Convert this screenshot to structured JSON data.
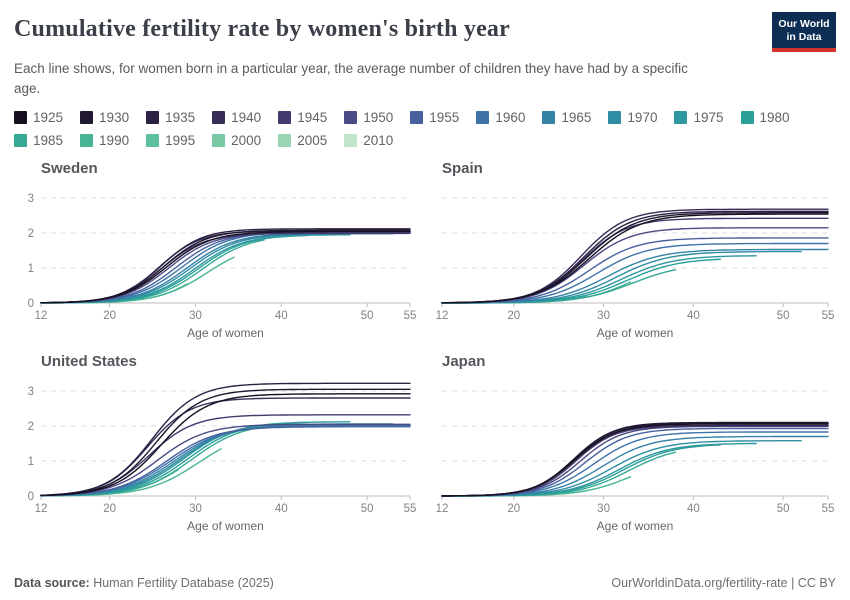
{
  "header": {
    "title": "Cumulative fertility rate by women's birth year",
    "subtitle": "Each line shows, for women born in a particular year, the average number of children they have had by a specific age.",
    "logo": {
      "line1": "Our World",
      "line2": "in Data"
    }
  },
  "colors": {
    "accent_navy": "#0d2e53",
    "accent_red": "#d2332e",
    "gridline": "#dcdcdc",
    "axis": "#bdbdbd",
    "tick_label": "#828282",
    "axis_title": "#666666"
  },
  "legend": {
    "items": [
      {
        "year": 1925,
        "color": "#161021"
      },
      {
        "year": 1930,
        "color": "#211831"
      },
      {
        "year": 1935,
        "color": "#2c2143"
      },
      {
        "year": 1940,
        "color": "#372d57"
      },
      {
        "year": 1945,
        "color": "#423a6c"
      },
      {
        "year": 1950,
        "color": "#4a4a85"
      },
      {
        "year": 1955,
        "color": "#48619e"
      },
      {
        "year": 1960,
        "color": "#3d73a9"
      },
      {
        "year": 1965,
        "color": "#3582a7"
      },
      {
        "year": 1970,
        "color": "#2e8da2"
      },
      {
        "year": 1975,
        "color": "#2e97a0"
      },
      {
        "year": 1980,
        "color": "#2ba099"
      },
      {
        "year": 1985,
        "color": "#35a993"
      },
      {
        "year": 1990,
        "color": "#47b496"
      },
      {
        "year": 1995,
        "color": "#5cbf9d"
      },
      {
        "year": 2000,
        "color": "#79c9a6"
      },
      {
        "year": 2005,
        "color": "#99d5b2"
      },
      {
        "year": 2010,
        "color": "#c0e5cb"
      }
    ]
  },
  "chart_data": [
    {
      "type": "line",
      "title": "Sweden",
      "xlabel": "Age of women",
      "xlim": [
        12,
        55
      ],
      "ylim": [
        0,
        3.45
      ],
      "x_ticks": [
        12,
        20,
        30,
        40,
        50,
        55
      ],
      "y_ticks": [
        0,
        1,
        2,
        3
      ],
      "show_y_labels": true,
      "grid": "dashed horizontal",
      "series_note": "Each series: birth-year cohort. final = cumulative fertility at end_age (line endpoint read from chart); mid/steep = logistic shape of the curve.",
      "series": [
        {
          "year": 1925,
          "final": 2.04,
          "end_age": 55,
          "mid": 26.6,
          "steep": 2.6
        },
        {
          "year": 1930,
          "final": 2.08,
          "end_age": 55,
          "mid": 26.3,
          "steep": 2.5
        },
        {
          "year": 1935,
          "final": 2.12,
          "end_age": 55,
          "mid": 26.0,
          "steep": 2.4
        },
        {
          "year": 1940,
          "final": 2.06,
          "end_age": 55,
          "mid": 25.8,
          "steep": 2.4
        },
        {
          "year": 1945,
          "final": 1.99,
          "end_age": 55,
          "mid": 26.1,
          "steep": 2.5
        },
        {
          "year": 1950,
          "final": 2.0,
          "end_age": 55,
          "mid": 26.9,
          "steep": 2.6
        },
        {
          "year": 1955,
          "final": 2.02,
          "end_age": 55,
          "mid": 27.7,
          "steep": 2.7
        },
        {
          "year": 1960,
          "final": 2.04,
          "end_age": 55,
          "mid": 28.4,
          "steep": 2.8
        },
        {
          "year": 1965,
          "final": 2.0,
          "end_age": 55,
          "mid": 29.0,
          "steep": 2.8
        },
        {
          "year": 1970,
          "final": 1.98,
          "end_age": 53,
          "mid": 29.4,
          "steep": 2.8
        },
        {
          "year": 1975,
          "final": 1.95,
          "end_age": 48,
          "mid": 29.9,
          "steep": 2.8
        },
        {
          "year": 1980,
          "final": 1.93,
          "end_age": 43,
          "mid": 30.3,
          "steep": 2.8
        },
        {
          "year": 1985,
          "final": 1.8,
          "end_age": 38,
          "mid": 30.8,
          "steep": 2.8
        },
        {
          "year": 1990,
          "final": 1.31,
          "end_age": 34.5,
          "mid": 31.4,
          "steep": 2.8
        },
        {
          "year": 1995,
          "final": 0.55,
          "end_age": 29,
          "mid": 32.0,
          "steep": 2.8
        },
        {
          "year": 2000,
          "final": 0.15,
          "end_age": 24,
          "mid": 32.5,
          "steep": 2.8
        },
        {
          "year": 2005,
          "final": 0.02,
          "end_age": 19,
          "mid": 33.0,
          "steep": 2.8
        },
        {
          "year": 2010,
          "final": 0.01,
          "end_age": 14,
          "mid": 33.0,
          "steep": 2.8
        }
      ]
    },
    {
      "type": "line",
      "title": "Spain",
      "xlabel": "Age of women",
      "xlim": [
        12,
        55
      ],
      "ylim": [
        0,
        3.45
      ],
      "x_ticks": [
        12,
        20,
        30,
        40,
        50,
        55
      ],
      "y_ticks": [
        0,
        1,
        2,
        3
      ],
      "show_y_labels": false,
      "grid": "dashed horizontal",
      "series": [
        {
          "year": 1925,
          "final": 2.54,
          "end_age": 55,
          "mid": 28.4,
          "steep": 2.8
        },
        {
          "year": 1930,
          "final": 2.58,
          "end_age": 55,
          "mid": 28.1,
          "steep": 2.7
        },
        {
          "year": 1935,
          "final": 2.62,
          "end_age": 55,
          "mid": 27.8,
          "steep": 2.6
        },
        {
          "year": 1940,
          "final": 2.68,
          "end_age": 55,
          "mid": 27.5,
          "steep": 2.5
        },
        {
          "year": 1945,
          "final": 2.42,
          "end_age": 55,
          "mid": 27.6,
          "steep": 2.5
        },
        {
          "year": 1950,
          "final": 2.15,
          "end_age": 55,
          "mid": 27.8,
          "steep": 2.6
        },
        {
          "year": 1955,
          "final": 1.86,
          "end_age": 55,
          "mid": 28.4,
          "steep": 2.7
        },
        {
          "year": 1960,
          "final": 1.7,
          "end_age": 55,
          "mid": 29.3,
          "steep": 2.8
        },
        {
          "year": 1965,
          "final": 1.53,
          "end_age": 55,
          "mid": 30.5,
          "steep": 2.9
        },
        {
          "year": 1970,
          "final": 1.47,
          "end_age": 52,
          "mid": 31.4,
          "steep": 2.9
        },
        {
          "year": 1975,
          "final": 1.35,
          "end_age": 47,
          "mid": 32.0,
          "steep": 2.9
        },
        {
          "year": 1980,
          "final": 1.25,
          "end_age": 43,
          "mid": 32.6,
          "steep": 2.9
        },
        {
          "year": 1985,
          "final": 0.95,
          "end_age": 38,
          "mid": 33.2,
          "steep": 2.9
        },
        {
          "year": 1990,
          "final": 0.6,
          "end_age": 33,
          "mid": 33.8,
          "steep": 2.9
        },
        {
          "year": 1995,
          "final": 0.2,
          "end_age": 28,
          "mid": 34.2,
          "steep": 2.9
        },
        {
          "year": 2000,
          "final": 0.04,
          "end_age": 23,
          "mid": 34.5,
          "steep": 2.9
        },
        {
          "year": 2005,
          "final": 0.01,
          "end_age": 18,
          "mid": 34.5,
          "steep": 2.9
        },
        {
          "year": 2010,
          "final": 0.01,
          "end_age": 13,
          "mid": 34.5,
          "steep": 2.9
        }
      ]
    },
    {
      "type": "line",
      "title": "United States",
      "xlabel": "Age of women",
      "xlim": [
        12,
        55
      ],
      "ylim": [
        0,
        3.45
      ],
      "x_ticks": [
        12,
        20,
        30,
        40,
        50,
        55
      ],
      "y_ticks": [
        0,
        1,
        2,
        3
      ],
      "show_y_labels": true,
      "grid": "dashed horizontal",
      "series": [
        {
          "year": 1925,
          "final": 2.92,
          "end_age": 55,
          "mid": 26.0,
          "steep": 2.7
        },
        {
          "year": 1930,
          "final": 3.05,
          "end_age": 55,
          "mid": 25.4,
          "steep": 2.6
        },
        {
          "year": 1935,
          "final": 3.22,
          "end_age": 55,
          "mid": 24.9,
          "steep": 2.6
        },
        {
          "year": 1940,
          "final": 2.8,
          "end_age": 55,
          "mid": 24.4,
          "steep": 2.5
        },
        {
          "year": 1945,
          "final": 2.32,
          "end_age": 55,
          "mid": 24.6,
          "steep": 2.6
        },
        {
          "year": 1950,
          "final": 2.05,
          "end_age": 55,
          "mid": 25.6,
          "steep": 2.8
        },
        {
          "year": 1955,
          "final": 1.98,
          "end_age": 55,
          "mid": 26.6,
          "steep": 2.9
        },
        {
          "year": 1960,
          "final": 2.0,
          "end_age": 55,
          "mid": 27.1,
          "steep": 3.0
        },
        {
          "year": 1965,
          "final": 2.02,
          "end_age": 55,
          "mid": 27.6,
          "steep": 3.0
        },
        {
          "year": 1970,
          "final": 2.06,
          "end_age": 53,
          "mid": 28.1,
          "steep": 3.0
        },
        {
          "year": 1975,
          "final": 2.12,
          "end_age": 48,
          "mid": 28.6,
          "steep": 3.0
        },
        {
          "year": 1980,
          "final": 2.1,
          "end_age": 43,
          "mid": 29.1,
          "steep": 3.0
        },
        {
          "year": 1985,
          "final": 1.98,
          "end_age": 38,
          "mid": 29.6,
          "steep": 3.0
        },
        {
          "year": 1990,
          "final": 1.35,
          "end_age": 33,
          "mid": 30.4,
          "steep": 3.0
        },
        {
          "year": 1995,
          "final": 0.75,
          "end_age": 28,
          "mid": 29.5,
          "steep": 3.0
        },
        {
          "year": 2000,
          "final": 0.25,
          "end_age": 23.5,
          "mid": 30.5,
          "steep": 3.0
        },
        {
          "year": 2005,
          "final": 0.03,
          "end_age": 18.5,
          "mid": 31.0,
          "steep": 3.0
        },
        {
          "year": 2010,
          "final": 0.01,
          "end_age": 13.5,
          "mid": 31.0,
          "steep": 3.0
        }
      ]
    },
    {
      "type": "line",
      "title": "Japan",
      "xlabel": "Age of women",
      "xlim": [
        12,
        55
      ],
      "ylim": [
        0,
        3.45
      ],
      "x_ticks": [
        12,
        20,
        30,
        40,
        50,
        55
      ],
      "y_ticks": [
        0,
        1,
        2,
        3
      ],
      "show_y_labels": false,
      "grid": "dashed horizontal",
      "series": [
        {
          "year": 1925,
          "final": 2.06,
          "end_age": 55,
          "mid": 26.8,
          "steep": 2.3
        },
        {
          "year": 1930,
          "final": 2.1,
          "end_age": 55,
          "mid": 26.7,
          "steep": 2.2
        },
        {
          "year": 1935,
          "final": 2.07,
          "end_age": 55,
          "mid": 26.6,
          "steep": 2.2
        },
        {
          "year": 1940,
          "final": 2.02,
          "end_age": 55,
          "mid": 26.6,
          "steep": 2.2
        },
        {
          "year": 1945,
          "final": 2.0,
          "end_age": 55,
          "mid": 26.9,
          "steep": 2.2
        },
        {
          "year": 1950,
          "final": 1.99,
          "end_age": 55,
          "mid": 27.4,
          "steep": 2.3
        },
        {
          "year": 1955,
          "final": 1.93,
          "end_age": 55,
          "mid": 28.0,
          "steep": 2.4
        },
        {
          "year": 1960,
          "final": 1.83,
          "end_age": 55,
          "mid": 28.9,
          "steep": 2.6
        },
        {
          "year": 1965,
          "final": 1.7,
          "end_age": 55,
          "mid": 29.9,
          "steep": 2.7
        },
        {
          "year": 1970,
          "final": 1.58,
          "end_age": 52,
          "mid": 30.9,
          "steep": 2.8
        },
        {
          "year": 1975,
          "final": 1.5,
          "end_age": 47,
          "mid": 31.7,
          "steep": 2.8
        },
        {
          "year": 1980,
          "final": 1.46,
          "end_age": 43,
          "mid": 32.2,
          "steep": 2.8
        },
        {
          "year": 1985,
          "final": 1.25,
          "end_age": 38,
          "mid": 32.8,
          "steep": 2.8
        },
        {
          "year": 1990,
          "final": 0.55,
          "end_age": 33,
          "mid": 33.5,
          "steep": 2.8
        },
        {
          "year": 1995,
          "final": 0.15,
          "end_age": 28,
          "mid": 34.0,
          "steep": 2.8
        },
        {
          "year": 2000,
          "final": 0.03,
          "end_age": 23,
          "mid": 34.0,
          "steep": 2.8
        },
        {
          "year": 2005,
          "final": 0.01,
          "end_age": 18,
          "mid": 34.0,
          "steep": 2.8
        },
        {
          "year": 2010,
          "final": 0.01,
          "end_age": 13,
          "mid": 34.0,
          "steep": 2.8
        }
      ]
    }
  ],
  "footer": {
    "source_label": "Data source:",
    "source_text": " Human Fertility Database (2025)",
    "right_text": "OurWorldinData.org/fertility-rate | CC BY"
  }
}
